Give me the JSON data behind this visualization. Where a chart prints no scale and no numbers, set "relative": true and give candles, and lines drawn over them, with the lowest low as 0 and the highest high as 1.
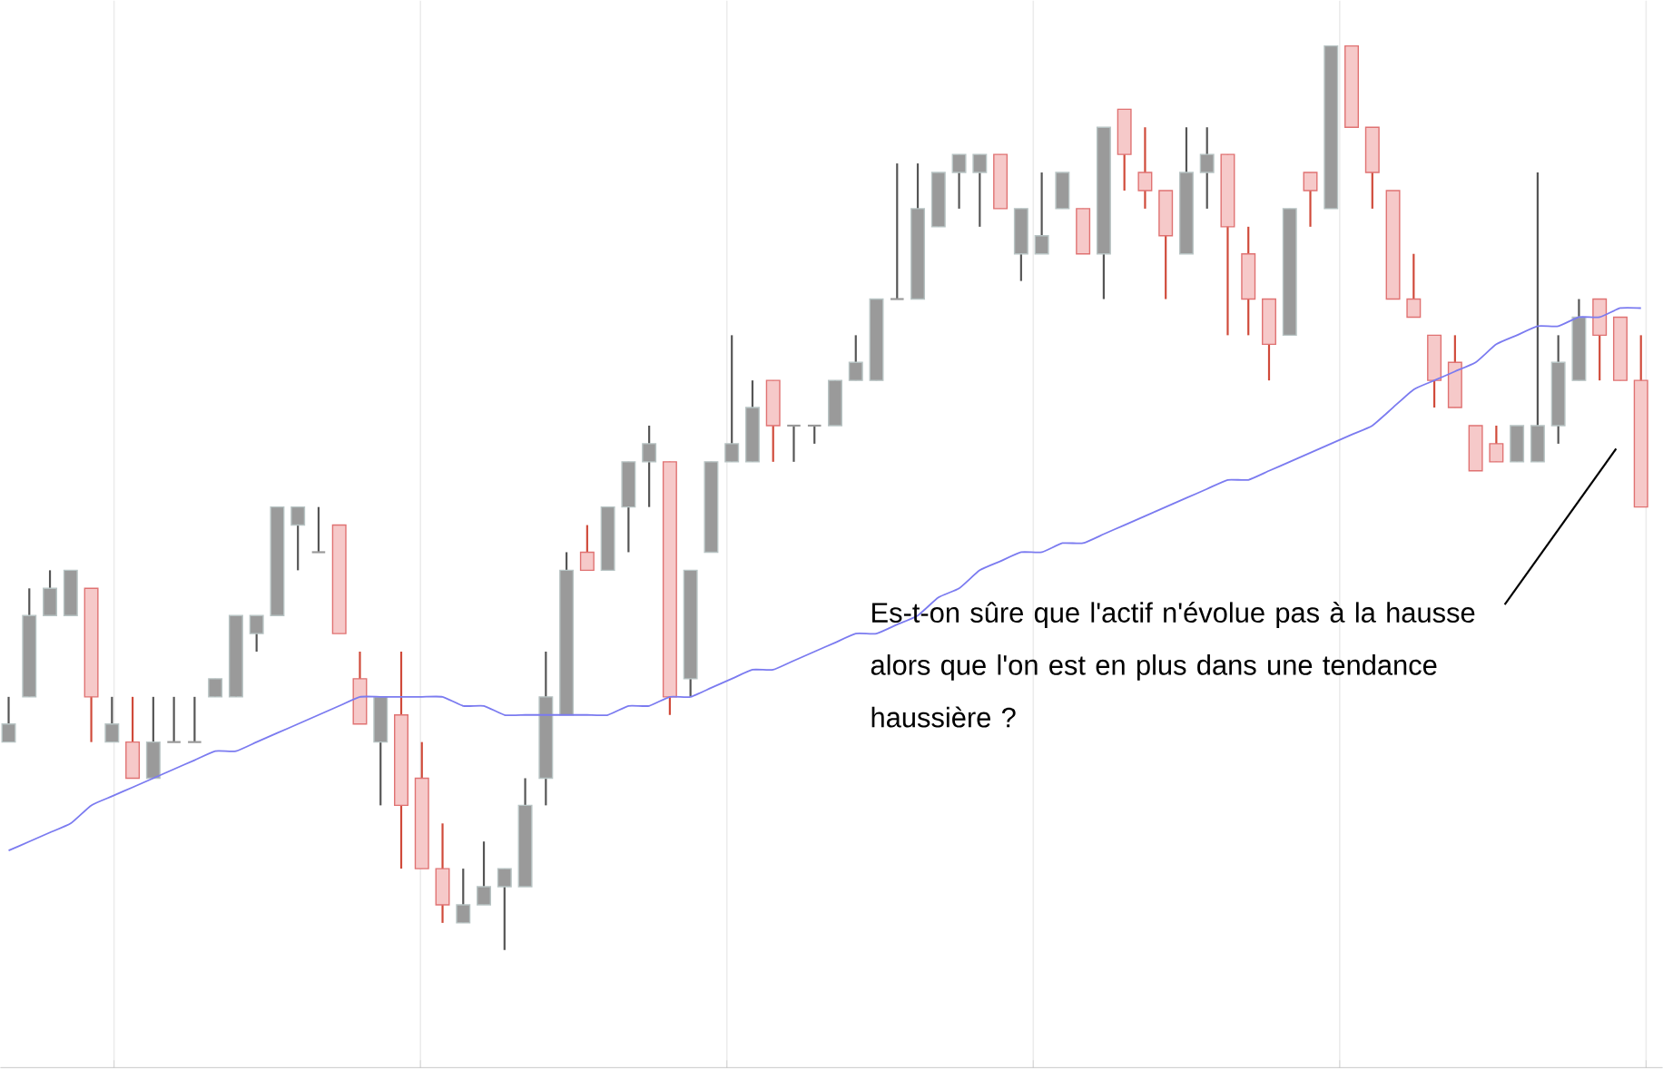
{
  "chart_data": {
    "type": "candlestick",
    "relative": true,
    "grid": true,
    "categories": [
      null,
      null,
      null,
      null,
      null,
      null,
      null,
      null,
      null,
      null,
      null,
      null,
      null,
      null,
      null,
      null,
      null,
      null,
      null,
      null,
      null,
      null,
      null,
      null,
      null,
      null,
      null,
      null,
      null,
      null,
      null,
      null,
      null,
      null,
      null,
      null,
      null,
      null,
      null,
      null,
      null,
      null,
      null,
      null,
      null,
      null,
      null,
      null,
      null,
      null,
      null,
      null,
      null,
      null,
      null,
      null,
      null,
      null,
      null,
      null,
      null,
      null,
      null,
      null,
      null,
      null,
      null,
      null,
      null,
      null,
      null,
      null,
      null,
      null,
      null,
      null,
      null,
      null,
      null,
      null
    ],
    "ohlc": [
      [
        0.23,
        0.28,
        0.23,
        0.25
      ],
      [
        0.28,
        0.4,
        0.28,
        0.37
      ],
      [
        0.37,
        0.42,
        0.37,
        0.4
      ],
      [
        0.37,
        0.42,
        0.37,
        0.42
      ],
      [
        0.4,
        0.4,
        0.23,
        0.28
      ],
      [
        0.23,
        0.28,
        0.23,
        0.25
      ],
      [
        0.23,
        0.28,
        0.19,
        0.19
      ],
      [
        0.19,
        0.28,
        0.19,
        0.23
      ],
      [
        0.23,
        0.28,
        0.23,
        0.23
      ],
      [
        0.23,
        0.28,
        0.23,
        0.23
      ],
      [
        0.28,
        0.3,
        0.28,
        0.3
      ],
      [
        0.28,
        0.37,
        0.28,
        0.37
      ],
      [
        0.35,
        0.37,
        0.33,
        0.37
      ],
      [
        0.37,
        0.49,
        0.37,
        0.49
      ],
      [
        0.47,
        0.49,
        0.42,
        0.49
      ],
      [
        0.44,
        0.49,
        0.44,
        0.44
      ],
      [
        0.47,
        0.47,
        0.35,
        0.35
      ],
      [
        0.3,
        0.33,
        0.25,
        0.25
      ],
      [
        0.23,
        0.28,
        0.16,
        0.28
      ],
      [
        0.26,
        0.33,
        0.09,
        0.16
      ],
      [
        0.19,
        0.23,
        0.09,
        0.09
      ],
      [
        0.09,
        0.14,
        0.03,
        0.05
      ],
      [
        0.03,
        0.09,
        0.03,
        0.05
      ],
      [
        0.05,
        0.12,
        0.05,
        0.07
      ],
      [
        0.07,
        0.09,
        0,
        0.09
      ],
      [
        0.07,
        0.19,
        0.07,
        0.16
      ],
      [
        0.19,
        0.33,
        0.16,
        0.28
      ],
      [
        0.26,
        0.44,
        0.26,
        0.42
      ],
      [
        0.44,
        0.47,
        0.42,
        0.42
      ],
      [
        0.42,
        0.49,
        0.42,
        0.49
      ],
      [
        0.49,
        0.54,
        0.44,
        0.54
      ],
      [
        0.54,
        0.58,
        0.49,
        0.56
      ],
      [
        0.54,
        0.54,
        0.26,
        0.28
      ],
      [
        0.3,
        0.42,
        0.28,
        0.42
      ],
      [
        0.44,
        0.54,
        0.44,
        0.54
      ],
      [
        0.54,
        0.68,
        0.54,
        0.56
      ],
      [
        0.54,
        0.63,
        0.54,
        0.6
      ],
      [
        0.63,
        0.63,
        0.54,
        0.58
      ],
      [
        0.58,
        0.58,
        0.54,
        0.58
      ],
      [
        0.58,
        0.58,
        0.56,
        0.58
      ],
      [
        0.58,
        0.63,
        0.58,
        0.63
      ],
      [
        0.63,
        0.68,
        0.63,
        0.65
      ],
      [
        0.63,
        0.72,
        0.63,
        0.72
      ],
      [
        0.72,
        0.87,
        0.72,
        0.72
      ],
      [
        0.72,
        0.87,
        0.72,
        0.82
      ],
      [
        0.8,
        0.86,
        0.8,
        0.86
      ],
      [
        0.86,
        0.88,
        0.82,
        0.88
      ],
      [
        0.86,
        0.88,
        0.8,
        0.88
      ],
      [
        0.88,
        0.88,
        0.82,
        0.82
      ],
      [
        0.77,
        0.82,
        0.74,
        0.82
      ],
      [
        0.77,
        0.86,
        0.77,
        0.79
      ],
      [
        0.82,
        0.86,
        0.82,
        0.86
      ],
      [
        0.82,
        0.82,
        0.77,
        0.77
      ],
      [
        0.77,
        0.91,
        0.72,
        0.91
      ],
      [
        0.93,
        0.93,
        0.84,
        0.88
      ],
      [
        0.86,
        0.91,
        0.82,
        0.84
      ],
      [
        0.84,
        0.84,
        0.72,
        0.79
      ],
      [
        0.77,
        0.91,
        0.77,
        0.86
      ],
      [
        0.86,
        0.91,
        0.82,
        0.88
      ],
      [
        0.88,
        0.88,
        0.68,
        0.8
      ],
      [
        0.77,
        0.8,
        0.68,
        0.72
      ],
      [
        0.72,
        0.72,
        0.63,
        0.67
      ],
      [
        0.68,
        0.82,
        0.68,
        0.82
      ],
      [
        0.86,
        0.86,
        0.8,
        0.84
      ],
      [
        0.82,
        1,
        0.82,
        1
      ],
      [
        1,
        1,
        0.91,
        0.91
      ],
      [
        0.91,
        0.91,
        0.82,
        0.86
      ],
      [
        0.84,
        0.84,
        0.72,
        0.72
      ],
      [
        0.72,
        0.77,
        0.7,
        0.7
      ],
      [
        0.68,
        0.68,
        0.6,
        0.63
      ],
      [
        0.65,
        0.68,
        0.6,
        0.6
      ],
      [
        0.58,
        0.58,
        0.53,
        0.53
      ],
      [
        0.56,
        0.58,
        0.54,
        0.54
      ],
      [
        0.54,
        0.58,
        0.54,
        0.58
      ],
      [
        0.54,
        0.86,
        0.54,
        0.58
      ],
      [
        0.58,
        0.68,
        0.56,
        0.65
      ],
      [
        0.63,
        0.72,
        0.63,
        0.7
      ],
      [
        0.72,
        0.72,
        0.63,
        0.68
      ],
      [
        0.7,
        0.7,
        0.63,
        0.63
      ],
      [
        0.63,
        0.68,
        0.49,
        0.49
      ]
    ],
    "series": [
      {
        "type": "line",
        "color": "#7b7bf0",
        "values": [
          0.11,
          0.12,
          0.13,
          0.14,
          0.16,
          0.17,
          0.18,
          0.19,
          0.2,
          0.21,
          0.22,
          0.22,
          0.23,
          0.24,
          0.25,
          0.26,
          0.27,
          0.28,
          0.28,
          0.28,
          0.28,
          0.28,
          0.27,
          0.27,
          0.26,
          0.26,
          0.26,
          0.26,
          0.26,
          0.26,
          0.27,
          0.27,
          0.28,
          0.28,
          0.29,
          0.3,
          0.31,
          0.31,
          0.32,
          0.33,
          0.34,
          0.35,
          0.35,
          0.36,
          0.37,
          0.39,
          0.4,
          0.42,
          0.43,
          0.44,
          0.44,
          0.45,
          0.45,
          0.46,
          0.47,
          0.48,
          0.49,
          0.5,
          0.51,
          0.52,
          0.52,
          0.53,
          0.54,
          0.55,
          0.56,
          0.57,
          0.58,
          0.6,
          0.62,
          0.63,
          0.64,
          0.65,
          0.67,
          0.68,
          0.69,
          0.69,
          0.7,
          0.7,
          0.71,
          0.71
        ]
      }
    ],
    "annotations": [
      "Es-t-on sûre que l'actif n'évolue pas à la hausse alors que l'on est en plus dans une tendance haussière ?"
    ]
  }
}
